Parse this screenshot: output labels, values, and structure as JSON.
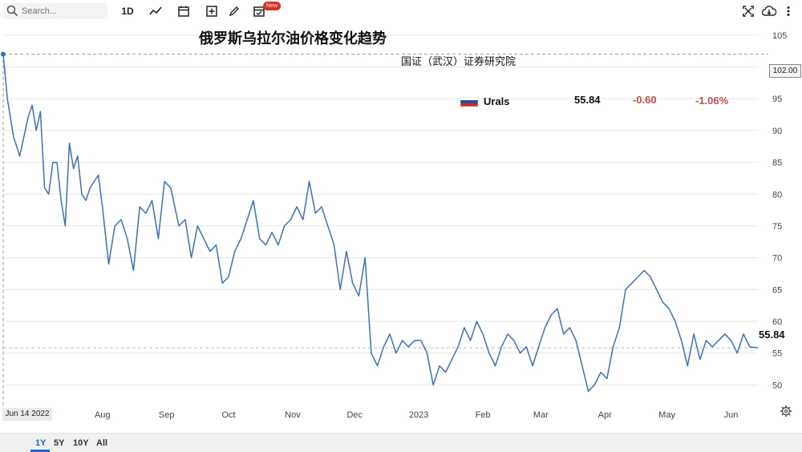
{
  "toolbar": {
    "search_placeholder": "Search...",
    "timeframe_label": "1D",
    "new_badge": "New",
    "icons": [
      "search-icon",
      "line-chart-icon",
      "calendar-icon",
      "add-icon",
      "pencil-icon",
      "calendar-check-icon",
      "fullscreen-icon",
      "cloud-download-icon",
      "more-icon"
    ]
  },
  "ranges": [
    {
      "label": "1Y",
      "active": true
    },
    {
      "label": "5Y",
      "active": false
    },
    {
      "label": "10Y",
      "active": false
    },
    {
      "label": "All",
      "active": false
    }
  ],
  "legend": {
    "name": "Urals",
    "price": "55.84",
    "change": "-0.60",
    "change_pct": "-1.06%",
    "change_color": "#c0504d",
    "flag_colors": [
      "#ffffff",
      "#1f4fa8",
      "#d52b1e"
    ]
  },
  "colors": {
    "line": "#3d6fc4",
    "grid": "#e6e6e6",
    "reference": "#999999"
  },
  "chart_data": {
    "type": "line",
    "title": "俄罗斯乌拉尔油价格变化趋势",
    "subtitle": "国证（武汉）证券研究院",
    "ylim": [
      45,
      107
    ],
    "yticks": [
      50,
      55,
      60,
      65,
      70,
      75,
      80,
      85,
      90,
      95,
      100,
      105
    ],
    "x_tick_labels": [
      "Aug",
      "Sep",
      "Oct",
      "Nov",
      "Dec",
      "2023",
      "Feb",
      "Mar",
      "Apr",
      "May",
      "Jun"
    ],
    "x_tick_dates": [
      "2022-08-01",
      "2022-09-01",
      "2022-10-01",
      "2022-11-01",
      "2022-12-01",
      "2023-01-01",
      "2023-02-01",
      "2023-03-01",
      "2023-04-01",
      "2023-05-01",
      "2023-06-01"
    ],
    "x_range": [
      "2022-06-14",
      "2023-06-14"
    ],
    "start_label": "Jun 14 2022",
    "max_label": "102.00",
    "max_value": 102.0,
    "last_label": "55.84",
    "last_value": 55.84,
    "series": [
      {
        "x": [
          "2022-06-14",
          "2022-06-16",
          "2022-06-19",
          "2022-06-22",
          "2022-06-24",
          "2022-06-26",
          "2022-06-28",
          "2022-06-30",
          "2022-07-02",
          "2022-07-04",
          "2022-07-06",
          "2022-07-08",
          "2022-07-10",
          "2022-07-12",
          "2022-07-14",
          "2022-07-16",
          "2022-07-18",
          "2022-07-20",
          "2022-07-22",
          "2022-07-24",
          "2022-07-26",
          "2022-07-28",
          "2022-07-30",
          "2022-08-01",
          "2022-08-04",
          "2022-08-07",
          "2022-08-10",
          "2022-08-13",
          "2022-08-16",
          "2022-08-19",
          "2022-08-22",
          "2022-08-25",
          "2022-08-28",
          "2022-08-31",
          "2022-09-03",
          "2022-09-07",
          "2022-09-10",
          "2022-09-13",
          "2022-09-16",
          "2022-09-19",
          "2022-09-22",
          "2022-09-25",
          "2022-09-28",
          "2022-10-01",
          "2022-10-04",
          "2022-10-07",
          "2022-10-10",
          "2022-10-13",
          "2022-10-16",
          "2022-10-19",
          "2022-10-22",
          "2022-10-25",
          "2022-10-28",
          "2022-10-31",
          "2022-11-03",
          "2022-11-06",
          "2022-11-09",
          "2022-11-12",
          "2022-11-15",
          "2022-11-18",
          "2022-11-21",
          "2022-11-24",
          "2022-11-27",
          "2022-11-30",
          "2022-12-03",
          "2022-12-06",
          "2022-12-09",
          "2022-12-12",
          "2022-12-15",
          "2022-12-18",
          "2022-12-21",
          "2022-12-24",
          "2022-12-27",
          "2022-12-30",
          "2023-01-02",
          "2023-01-05",
          "2023-01-08",
          "2023-01-11",
          "2023-01-14",
          "2023-01-17",
          "2023-01-20",
          "2023-01-23",
          "2023-01-26",
          "2023-01-29",
          "2023-02-01",
          "2023-02-04",
          "2023-02-07",
          "2023-02-10",
          "2023-02-13",
          "2023-02-16",
          "2023-02-19",
          "2023-02-22",
          "2023-02-25",
          "2023-02-28",
          "2023-03-03",
          "2023-03-06",
          "2023-03-09",
          "2023-03-12",
          "2023-03-15",
          "2023-03-18",
          "2023-03-21",
          "2023-03-24",
          "2023-03-27",
          "2023-03-30",
          "2023-04-02",
          "2023-04-05",
          "2023-04-08",
          "2023-04-11",
          "2023-04-14",
          "2023-04-17",
          "2023-04-20",
          "2023-04-23",
          "2023-04-26",
          "2023-04-29",
          "2023-05-02",
          "2023-05-05",
          "2023-05-08",
          "2023-05-11",
          "2023-05-14",
          "2023-05-17",
          "2023-05-20",
          "2023-05-23",
          "2023-05-26",
          "2023-05-29",
          "2023-06-01",
          "2023-06-04",
          "2023-06-07",
          "2023-06-10",
          "2023-06-14"
        ],
        "values": [
          102,
          95,
          89,
          86,
          89,
          92,
          94,
          90,
          93,
          81,
          80,
          85,
          85,
          79,
          75,
          88,
          84,
          86,
          80,
          79,
          81,
          82,
          83,
          78,
          69,
          75,
          76,
          73,
          68,
          78,
          77,
          79,
          73,
          82,
          81,
          75,
          76,
          70,
          75,
          73,
          71,
          72,
          66,
          67,
          71,
          73,
          76,
          79,
          73,
          72,
          74,
          72,
          75,
          76,
          78,
          76,
          82,
          77,
          78,
          75,
          72,
          65,
          71,
          66,
          64,
          70,
          55,
          53,
          56,
          58,
          55,
          57,
          56,
          57,
          57,
          55,
          50,
          53,
          52,
          54,
          56,
          59,
          57,
          60,
          58,
          55,
          53,
          56,
          58,
          57,
          55,
          56,
          53,
          56,
          59,
          61,
          62,
          58,
          59,
          57,
          53,
          49,
          50,
          52,
          51,
          56,
          59,
          65,
          66,
          67,
          68,
          67,
          65,
          63,
          62,
          60,
          57,
          53,
          58,
          54,
          57,
          56,
          57,
          58,
          57,
          55,
          58,
          56,
          55.84
        ]
      }
    ]
  }
}
